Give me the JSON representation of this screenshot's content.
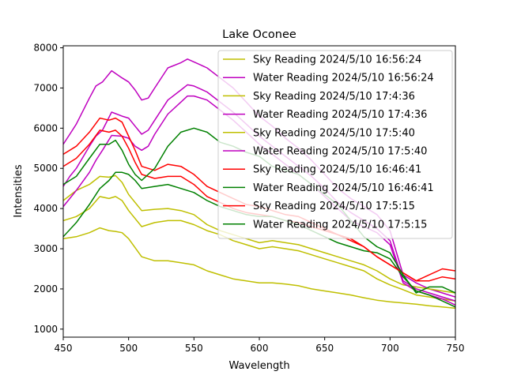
{
  "chart_data": {
    "type": "line",
    "title": "Lake Oconee",
    "xlabel": "Wavelength",
    "ylabel": "Intensities",
    "xlim": [
      450,
      750
    ],
    "ylim": [
      800,
      8050
    ],
    "xticks": [
      450,
      500,
      550,
      600,
      650,
      700,
      750
    ],
    "yticks": [
      1000,
      2000,
      3000,
      4000,
      5000,
      6000,
      7000,
      8000
    ],
    "grid": false,
    "legend_position": "top-right",
    "series": [
      {
        "name": "Sky Reading 2024/5/10 16:56:24",
        "color": "#bfbf00",
        "x": [
          450,
          460,
          470,
          478,
          485,
          490,
          495,
          500,
          510,
          520,
          530,
          540,
          550,
          560,
          570,
          580,
          590,
          600,
          610,
          620,
          630,
          640,
          650,
          660,
          670,
          680,
          690,
          700,
          710,
          720,
          730,
          740,
          750
        ],
        "y": [
          3700,
          3800,
          4000,
          4300,
          4250,
          4300,
          4200,
          3950,
          3550,
          3650,
          3700,
          3700,
          3600,
          3450,
          3350,
          3200,
          3100,
          3000,
          3050,
          3000,
          2950,
          2850,
          2750,
          2650,
          2550,
          2450,
          2250,
          2100,
          1980,
          1850,
          1800,
          1750,
          1700
        ]
      },
      {
        "name": "Water Reading 2024/5/10 16:56:24",
        "color": "#bf00bf",
        "x": [
          450,
          455,
          460,
          470,
          475,
          480,
          487,
          495,
          500,
          505,
          510,
          515,
          520,
          530,
          540,
          545,
          550,
          560,
          570,
          580,
          590,
          600,
          610,
          620,
          630,
          640,
          650,
          660,
          670,
          680,
          690,
          700,
          710,
          720,
          730,
          740,
          750
        ],
        "y": [
          5600,
          5850,
          6100,
          6750,
          7050,
          7150,
          7430,
          7250,
          7150,
          6950,
          6700,
          6750,
          7000,
          7500,
          7630,
          7720,
          7650,
          7500,
          7250,
          7000,
          6650,
          6300,
          6050,
          5750,
          5500,
          5200,
          4850,
          4500,
          4250,
          4050,
          3850,
          3450,
          2350,
          2150,
          2000,
          1900,
          1800
        ]
      },
      {
        "name": "Sky Reading 2024/5/10 17:4:36",
        "color": "#bfbf00",
        "x": [
          450,
          460,
          470,
          478,
          485,
          490,
          495,
          500,
          510,
          520,
          530,
          540,
          550,
          560,
          570,
          580,
          590,
          600,
          610,
          620,
          630,
          640,
          650,
          660,
          670,
          680,
          690,
          700,
          710,
          720,
          730,
          740,
          750
        ],
        "y": [
          4200,
          4450,
          4600,
          4800,
          4780,
          4820,
          4650,
          4350,
          3950,
          3980,
          4000,
          3950,
          3850,
          3600,
          3450,
          3350,
          3250,
          3150,
          3200,
          3150,
          3100,
          3000,
          2900,
          2800,
          2700,
          2600,
          2450,
          2250,
          2100,
          2050,
          2000,
          1950,
          1900
        ]
      },
      {
        "name": "Water Reading 2024/5/10 17:4:36",
        "color": "#bf00bf",
        "x": [
          450,
          455,
          460,
          470,
          475,
          480,
          487,
          495,
          500,
          505,
          510,
          515,
          520,
          530,
          540,
          545,
          550,
          560,
          570,
          580,
          590,
          600,
          610,
          620,
          630,
          640,
          650,
          660,
          670,
          680,
          690,
          700,
          710,
          720,
          730,
          740,
          750
        ],
        "y": [
          4550,
          4800,
          5000,
          5550,
          5800,
          5950,
          6400,
          6300,
          6250,
          6050,
          5850,
          5950,
          6200,
          6700,
          6950,
          7080,
          7050,
          6900,
          6650,
          6400,
          6100,
          5800,
          5550,
          5300,
          5050,
          4800,
          4500,
          4150,
          3900,
          3700,
          3500,
          3200,
          2200,
          2000,
          1900,
          1800,
          1700
        ]
      },
      {
        "name": "Sky Reading 2024/5/10 17:5:40",
        "color": "#bfbf00",
        "x": [
          450,
          460,
          470,
          478,
          485,
          490,
          495,
          500,
          510,
          520,
          530,
          540,
          550,
          560,
          570,
          580,
          590,
          600,
          610,
          620,
          630,
          640,
          650,
          660,
          670,
          680,
          690,
          700,
          710,
          720,
          730,
          740,
          750
        ],
        "y": [
          3250,
          3300,
          3400,
          3520,
          3450,
          3430,
          3400,
          3250,
          2800,
          2700,
          2700,
          2650,
          2600,
          2450,
          2350,
          2250,
          2200,
          2150,
          2150,
          2120,
          2080,
          2000,
          1950,
          1900,
          1850,
          1780,
          1720,
          1680,
          1650,
          1620,
          1580,
          1550,
          1520
        ]
      },
      {
        "name": "Water Reading 2024/5/10 17:5:40",
        "color": "#bf00bf",
        "x": [
          450,
          455,
          460,
          470,
          475,
          480,
          487,
          495,
          500,
          505,
          510,
          515,
          520,
          530,
          540,
          545,
          550,
          560,
          570,
          580,
          590,
          600,
          610,
          620,
          630,
          640,
          650,
          660,
          670,
          680,
          690,
          700,
          710,
          720,
          730,
          740,
          750
        ],
        "y": [
          4050,
          4250,
          4450,
          4900,
          5200,
          5450,
          5820,
          5800,
          5750,
          5550,
          5450,
          5550,
          5850,
          6350,
          6650,
          6800,
          6800,
          6700,
          6450,
          6200,
          5900,
          5600,
          5350,
          5100,
          4850,
          4600,
          4300,
          4000,
          3700,
          3550,
          3400,
          3100,
          2150,
          1950,
          1850,
          1750,
          1600
        ]
      },
      {
        "name": "Sky Reading 2024/5/10 16:46:41",
        "color": "#ff0000",
        "x": [
          450,
          460,
          470,
          478,
          485,
          490,
          495,
          500,
          505,
          510,
          520,
          530,
          540,
          550,
          560,
          570,
          580,
          590,
          600,
          610,
          620,
          630,
          640,
          650,
          660,
          670,
          680,
          690,
          700,
          710,
          720,
          730,
          740,
          750
        ],
        "y": [
          5050,
          5250,
          5600,
          5950,
          5900,
          5950,
          5800,
          5500,
          5150,
          4850,
          4750,
          4800,
          4800,
          4600,
          4300,
          4150,
          4000,
          3900,
          3850,
          3800,
          3700,
          3650,
          3550,
          3450,
          3350,
          3200,
          3050,
          2800,
          2600,
          2400,
          2200,
          2200,
          2300,
          2250
        ]
      },
      {
        "name": "Water Reading 2024/5/10 16:46:41",
        "color": "#008000",
        "x": [
          450,
          460,
          470,
          478,
          485,
          490,
          495,
          500,
          505,
          510,
          520,
          530,
          540,
          550,
          560,
          570,
          580,
          590,
          600,
          610,
          620,
          630,
          640,
          650,
          660,
          670,
          680,
          690,
          700,
          710,
          720,
          730,
          740,
          750
        ],
        "y": [
          3300,
          3650,
          4100,
          4500,
          4700,
          4900,
          4900,
          4850,
          4700,
          4500,
          4550,
          4600,
          4500,
          4400,
          4200,
          4050,
          3950,
          3850,
          3800,
          3800,
          3700,
          3600,
          3450,
          3300,
          3150,
          3050,
          2950,
          2900,
          2750,
          2300,
          1950,
          1850,
          1700,
          1550
        ]
      },
      {
        "name": "Sky Reading 2024/5/10 17:5:15",
        "color": "#ff0000",
        "x": [
          450,
          460,
          470,
          478,
          485,
          490,
          495,
          500,
          505,
          510,
          520,
          530,
          540,
          550,
          560,
          570,
          580,
          590,
          600,
          610,
          620,
          630,
          640,
          650,
          660,
          670,
          680,
          690,
          700,
          710,
          720,
          730,
          740,
          750
        ],
        "y": [
          5350,
          5550,
          5900,
          6250,
          6200,
          6250,
          6150,
          5800,
          5450,
          5050,
          4950,
          5100,
          5050,
          4850,
          4550,
          4400,
          4250,
          4100,
          4050,
          3950,
          3850,
          3800,
          3650,
          3500,
          3350,
          3250,
          3050,
          2800,
          2600,
          2400,
          2200,
          2350,
          2500,
          2450
        ]
      },
      {
        "name": "Water Reading 2024/5/10 17:5:15",
        "color": "#008000",
        "x": [
          450,
          460,
          470,
          478,
          485,
          490,
          495,
          500,
          505,
          510,
          520,
          530,
          540,
          550,
          560,
          570,
          580,
          590,
          600,
          610,
          620,
          630,
          640,
          650,
          660,
          670,
          680,
          690,
          700,
          710,
          720,
          730,
          740,
          750
        ],
        "y": [
          4600,
          4800,
          5250,
          5600,
          5600,
          5700,
          5450,
          5100,
          4850,
          4700,
          5000,
          5550,
          5900,
          6000,
          5900,
          5650,
          5550,
          5400,
          5300,
          5050,
          4950,
          4850,
          4600,
          4350,
          4100,
          3700,
          3300,
          3050,
          2900,
          2350,
          1900,
          2050,
          2050,
          1900
        ]
      }
    ]
  }
}
